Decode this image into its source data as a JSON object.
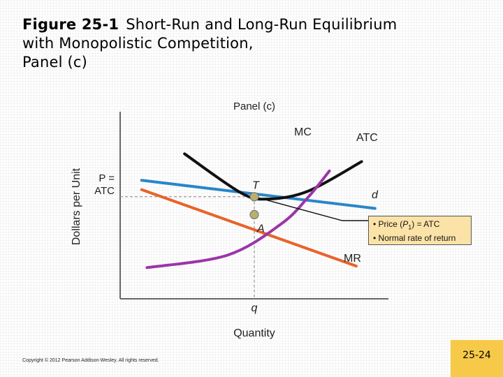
{
  "slide": {
    "figure_number": "Figure 25-1",
    "title_line1": "Short-Run and Long-Run Equilibrium",
    "title_line2": "with Monopolistic Competition,",
    "title_line3": "Panel (c)",
    "copyright": "Copyright © 2012 Pearson Addison-Wesley. All rights reserved.",
    "page_number": "25-24"
  },
  "annotation": {
    "line1_prefix": "• Price (",
    "line1_var": "P",
    "line1_sub": "1",
    "line1_suffix": ") = ATC",
    "line2": "• Normal rate of return"
  },
  "colors": {
    "mc": "#9b35a8",
    "atc": "#111111",
    "demand": "#2a86c8",
    "mr": "#e8632a",
    "point": "#b9b070",
    "box": "#fbe3a8",
    "page_box": "#f7c948"
  },
  "chart_data": {
    "type": "line",
    "title": "Panel (c)",
    "xlabel": "Quantity",
    "ylabel": "Dollars per Unit",
    "x_tick_labels": [
      "q"
    ],
    "y_tick_labels": [
      "P =",
      "ATC"
    ],
    "series": [
      {
        "name": "MC",
        "points": [
          [
            1.0,
            2.0
          ],
          [
            4.0,
            2.8
          ],
          [
            6.0,
            4.8
          ],
          [
            7.0,
            6.5
          ],
          [
            7.8,
            8.2
          ]
        ]
      },
      {
        "name": "ATC",
        "points": [
          [
            2.4,
            9.3
          ],
          [
            4.5,
            6.8
          ],
          [
            5.5,
            6.4
          ],
          [
            7.0,
            6.9
          ],
          [
            9.0,
            8.8
          ]
        ]
      },
      {
        "name": "d",
        "points": [
          [
            0.8,
            7.6
          ],
          [
            9.5,
            5.8
          ]
        ]
      },
      {
        "name": "MR",
        "points": [
          [
            0.8,
            7.0
          ],
          [
            8.8,
            2.1
          ]
        ]
      }
    ],
    "points": [
      {
        "label": "T",
        "x": 5.0,
        "y": 6.55
      },
      {
        "label": "A",
        "x": 5.0,
        "y": 5.4
      }
    ],
    "xlim": [
      0,
      10
    ],
    "ylim": [
      0,
      12
    ],
    "grid": false
  }
}
